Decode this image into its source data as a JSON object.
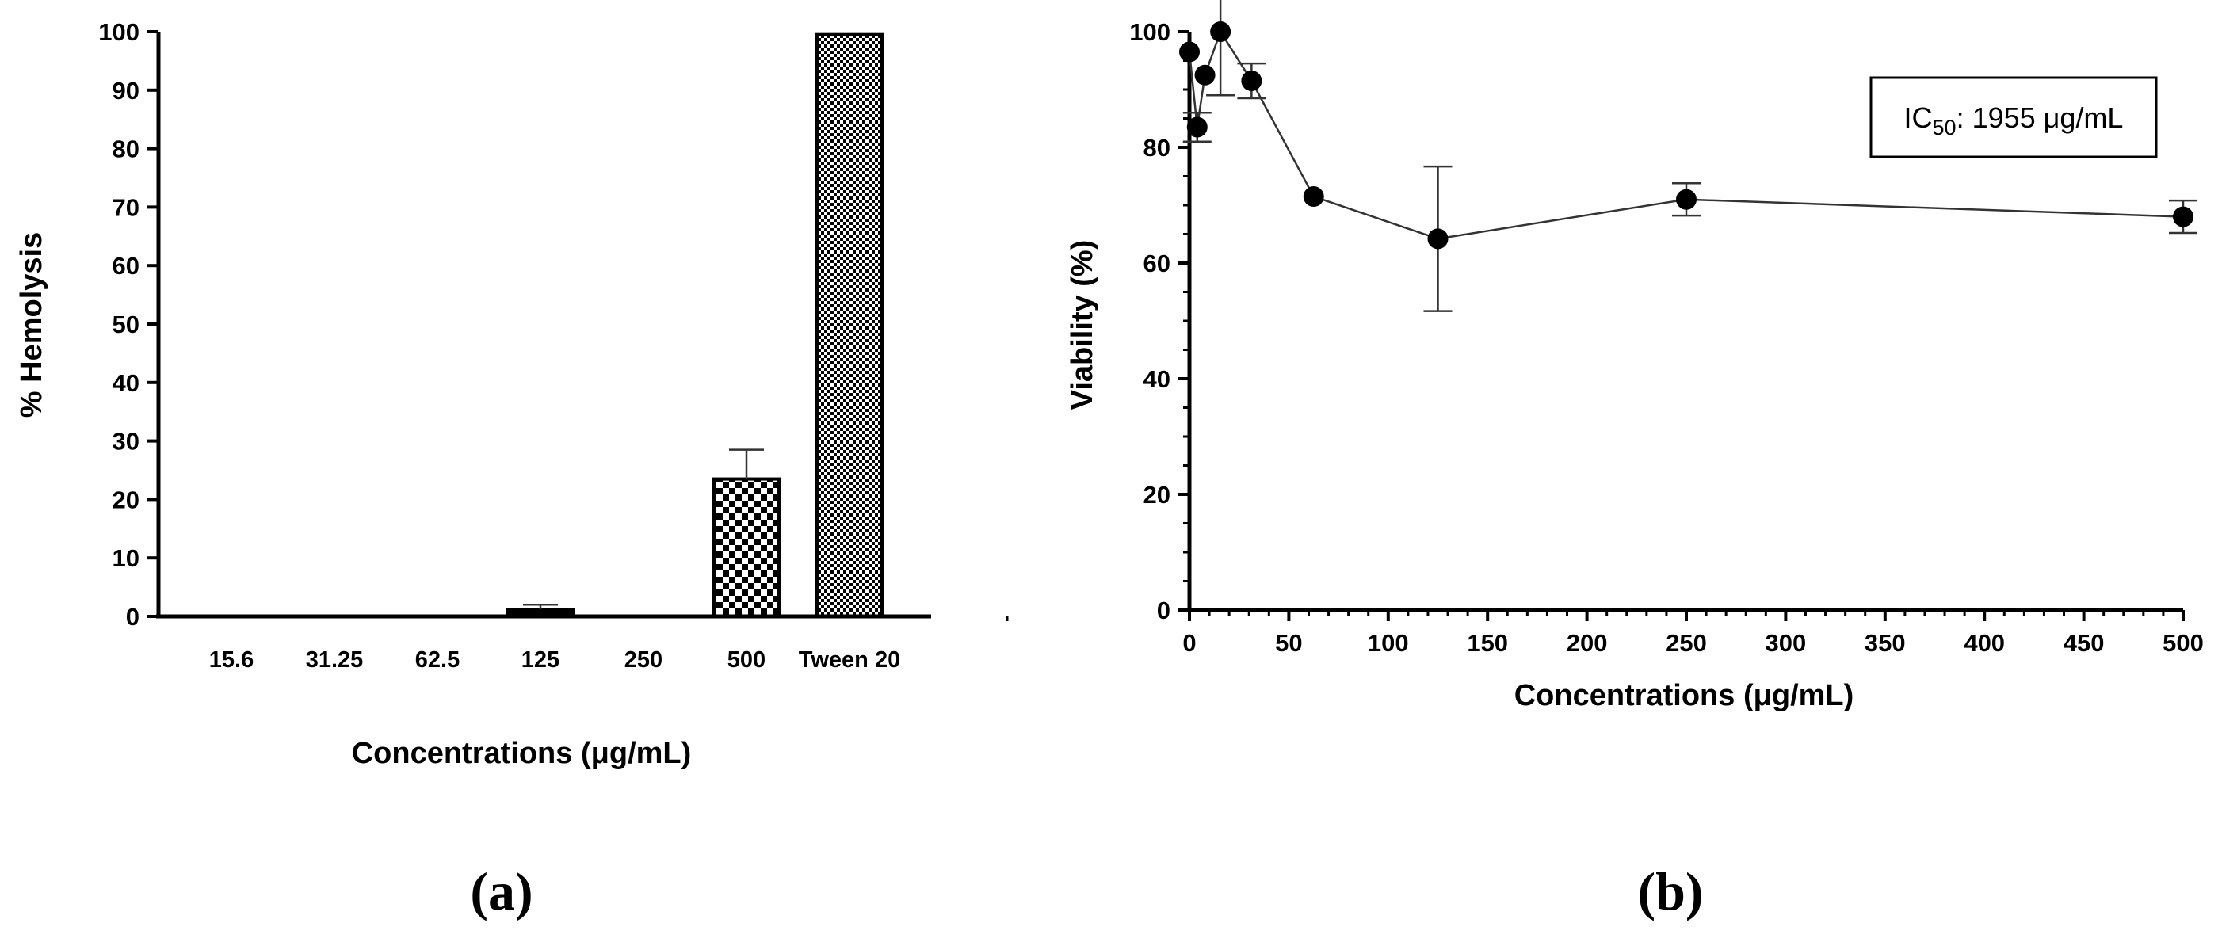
{
  "chart_data": [
    {
      "panel_label": "(a)",
      "type": "bar",
      "categories": [
        "15.6",
        "31.25",
        "62.5",
        "125",
        "250",
        "500",
        "Tween 20"
      ],
      "values": [
        0,
        0,
        0,
        1.2,
        0,
        23.5,
        99.5
      ],
      "errors": [
        0,
        0,
        0,
        0.8,
        0,
        5.0,
        0
      ],
      "patterns": [
        "solid",
        "solid",
        "solid",
        "solid",
        "solid",
        "checker-large",
        "checker-small"
      ],
      "title": "",
      "xlabel": "Concentrations (μg/mL)",
      "ylabel": "% Hemolysis",
      "ylim": [
        0,
        100
      ],
      "yticks": [
        0,
        10,
        20,
        30,
        40,
        50,
        60,
        70,
        80,
        90,
        100
      ]
    },
    {
      "panel_label": "(b)",
      "type": "line",
      "x": [
        0,
        3.9,
        7.8,
        15.6,
        31.25,
        62.5,
        125,
        250,
        500
      ],
      "y": [
        96.5,
        83.5,
        92.5,
        100,
        91.5,
        71.5,
        64.2,
        71,
        68
      ],
      "errors": [
        0,
        2.5,
        0,
        11,
        3,
        0,
        12.5,
        2.8,
        2.8
      ],
      "title": "",
      "xlabel": "Concentrations (μg/mL)",
      "ylabel": "Viability (%)",
      "xlim": [
        0,
        500
      ],
      "ylim": [
        0,
        100
      ],
      "xticks": [
        0,
        50,
        100,
        150,
        200,
        250,
        300,
        350,
        400,
        450,
        500
      ],
      "yticks": [
        0,
        20,
        40,
        60,
        80,
        100
      ],
      "annotation": {
        "prefix": "IC",
        "subscript": "50",
        "suffix": ": 1955 μg/mL"
      }
    }
  ]
}
